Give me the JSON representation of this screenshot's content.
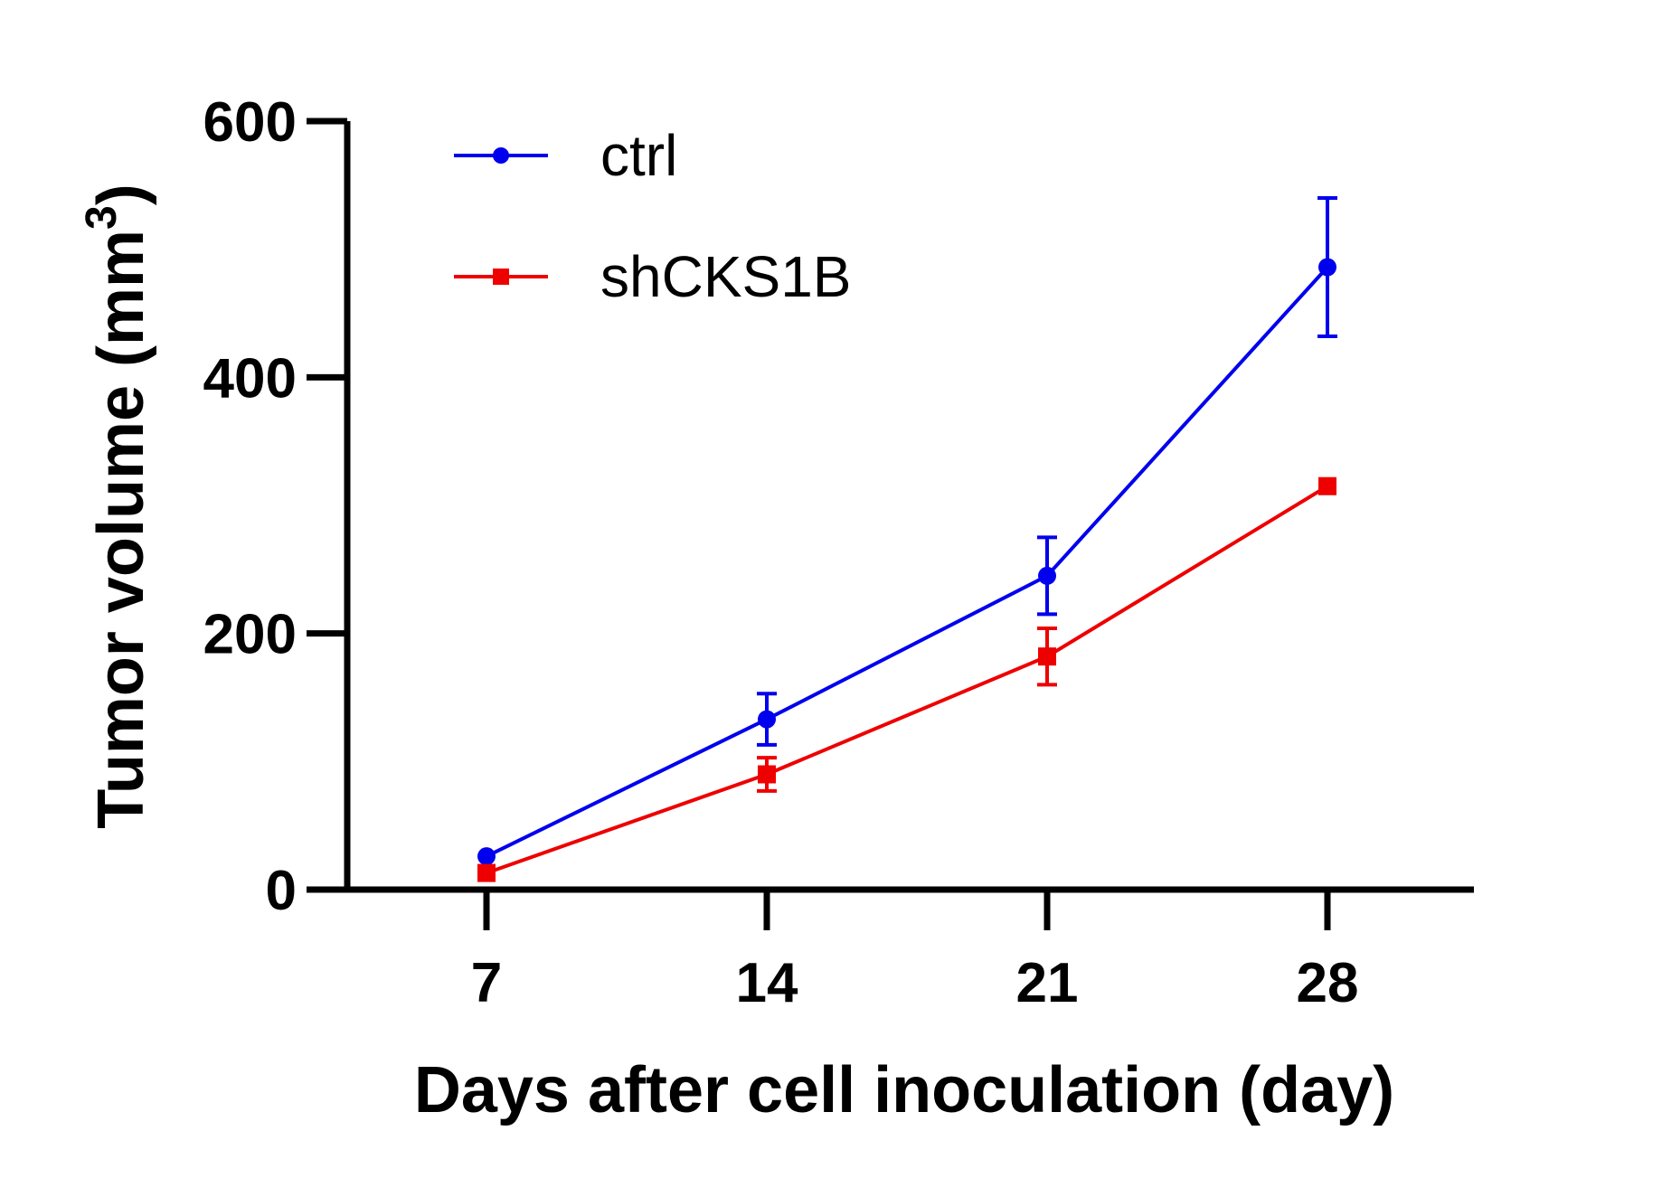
{
  "chart_data": {
    "type": "line",
    "xlabel": "Days after cell inoculation (day)",
    "ylabel_text": "Tumor volume (mm",
    "ylabel_sup": "3",
    "ylabel_close": ")",
    "x": [
      7,
      14,
      21,
      28
    ],
    "x_tick_labels": [
      "7",
      "14",
      "21",
      "28"
    ],
    "y_ticks": [
      0,
      200,
      400,
      600
    ],
    "y_tick_labels": [
      "0",
      "200",
      "400",
      "600"
    ],
    "ylim": [
      0,
      600
    ],
    "grid": false,
    "legend_position": "top-left",
    "series": [
      {
        "name": "ctrl",
        "color": "#0000ee",
        "marker": "circle",
        "values": [
          26,
          133,
          245,
          486
        ],
        "errors": [
          0,
          20,
          30,
          54
        ]
      },
      {
        "name": "shCKS1B",
        "color": "#ee0000",
        "marker": "square",
        "values": [
          13,
          90,
          182,
          315
        ],
        "errors": [
          0,
          13,
          22,
          0
        ]
      }
    ]
  }
}
